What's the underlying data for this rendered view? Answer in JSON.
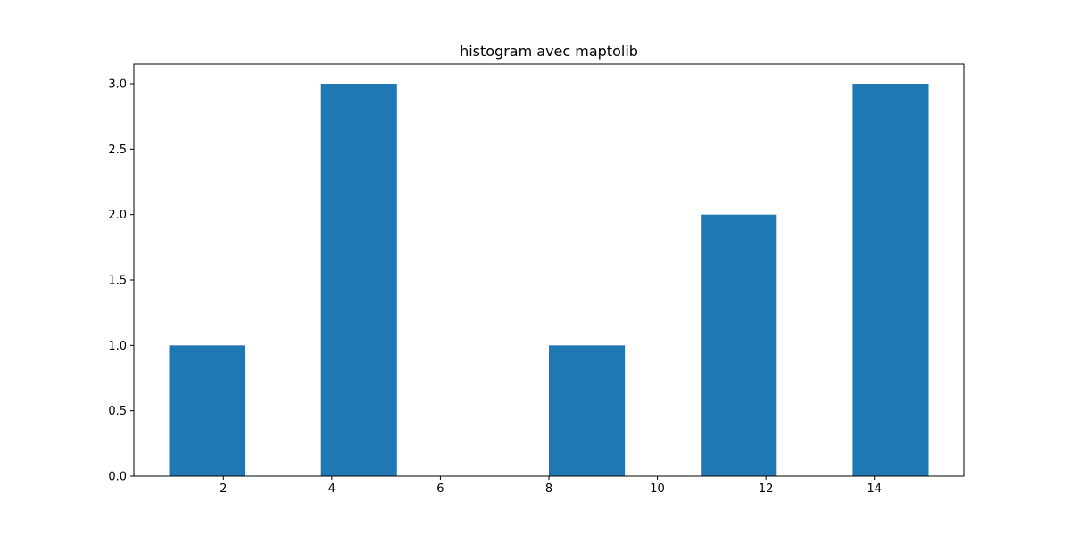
{
  "chart_data": {
    "type": "bar",
    "title": "histogram avec maptolib",
    "xlabel": "",
    "ylabel": "",
    "bars": [
      {
        "x_start": 1.0,
        "x_end": 2.4,
        "value": 1
      },
      {
        "x_start": 3.8,
        "x_end": 5.2,
        "value": 3
      },
      {
        "x_start": 6.6,
        "x_end": 8.0,
        "value": 0
      },
      {
        "x_start": 8.0,
        "x_end": 9.4,
        "value": 1
      },
      {
        "x_start": 9.4,
        "x_end": 10.8,
        "value": 0
      },
      {
        "x_start": 10.8,
        "x_end": 12.2,
        "value": 2
      },
      {
        "x_start": 13.6,
        "x_end": 15.0,
        "value": 3
      }
    ],
    "xlim": [
      0.35,
      15.65
    ],
    "ylim": [
      0,
      3.15
    ],
    "xticks": [
      2,
      4,
      6,
      8,
      10,
      12,
      14
    ],
    "xtick_labels": [
      "2",
      "4",
      "6",
      "8",
      "10",
      "12",
      "14"
    ],
    "yticks": [
      0,
      0.5,
      1,
      1.5,
      2,
      2.5,
      3
    ],
    "ytick_labels": [
      "0.0",
      "0.5",
      "1.0",
      "1.5",
      "2.0",
      "2.5",
      "3.0"
    ],
    "bar_color": "#1f77b4",
    "grid": false,
    "legend": "none"
  }
}
